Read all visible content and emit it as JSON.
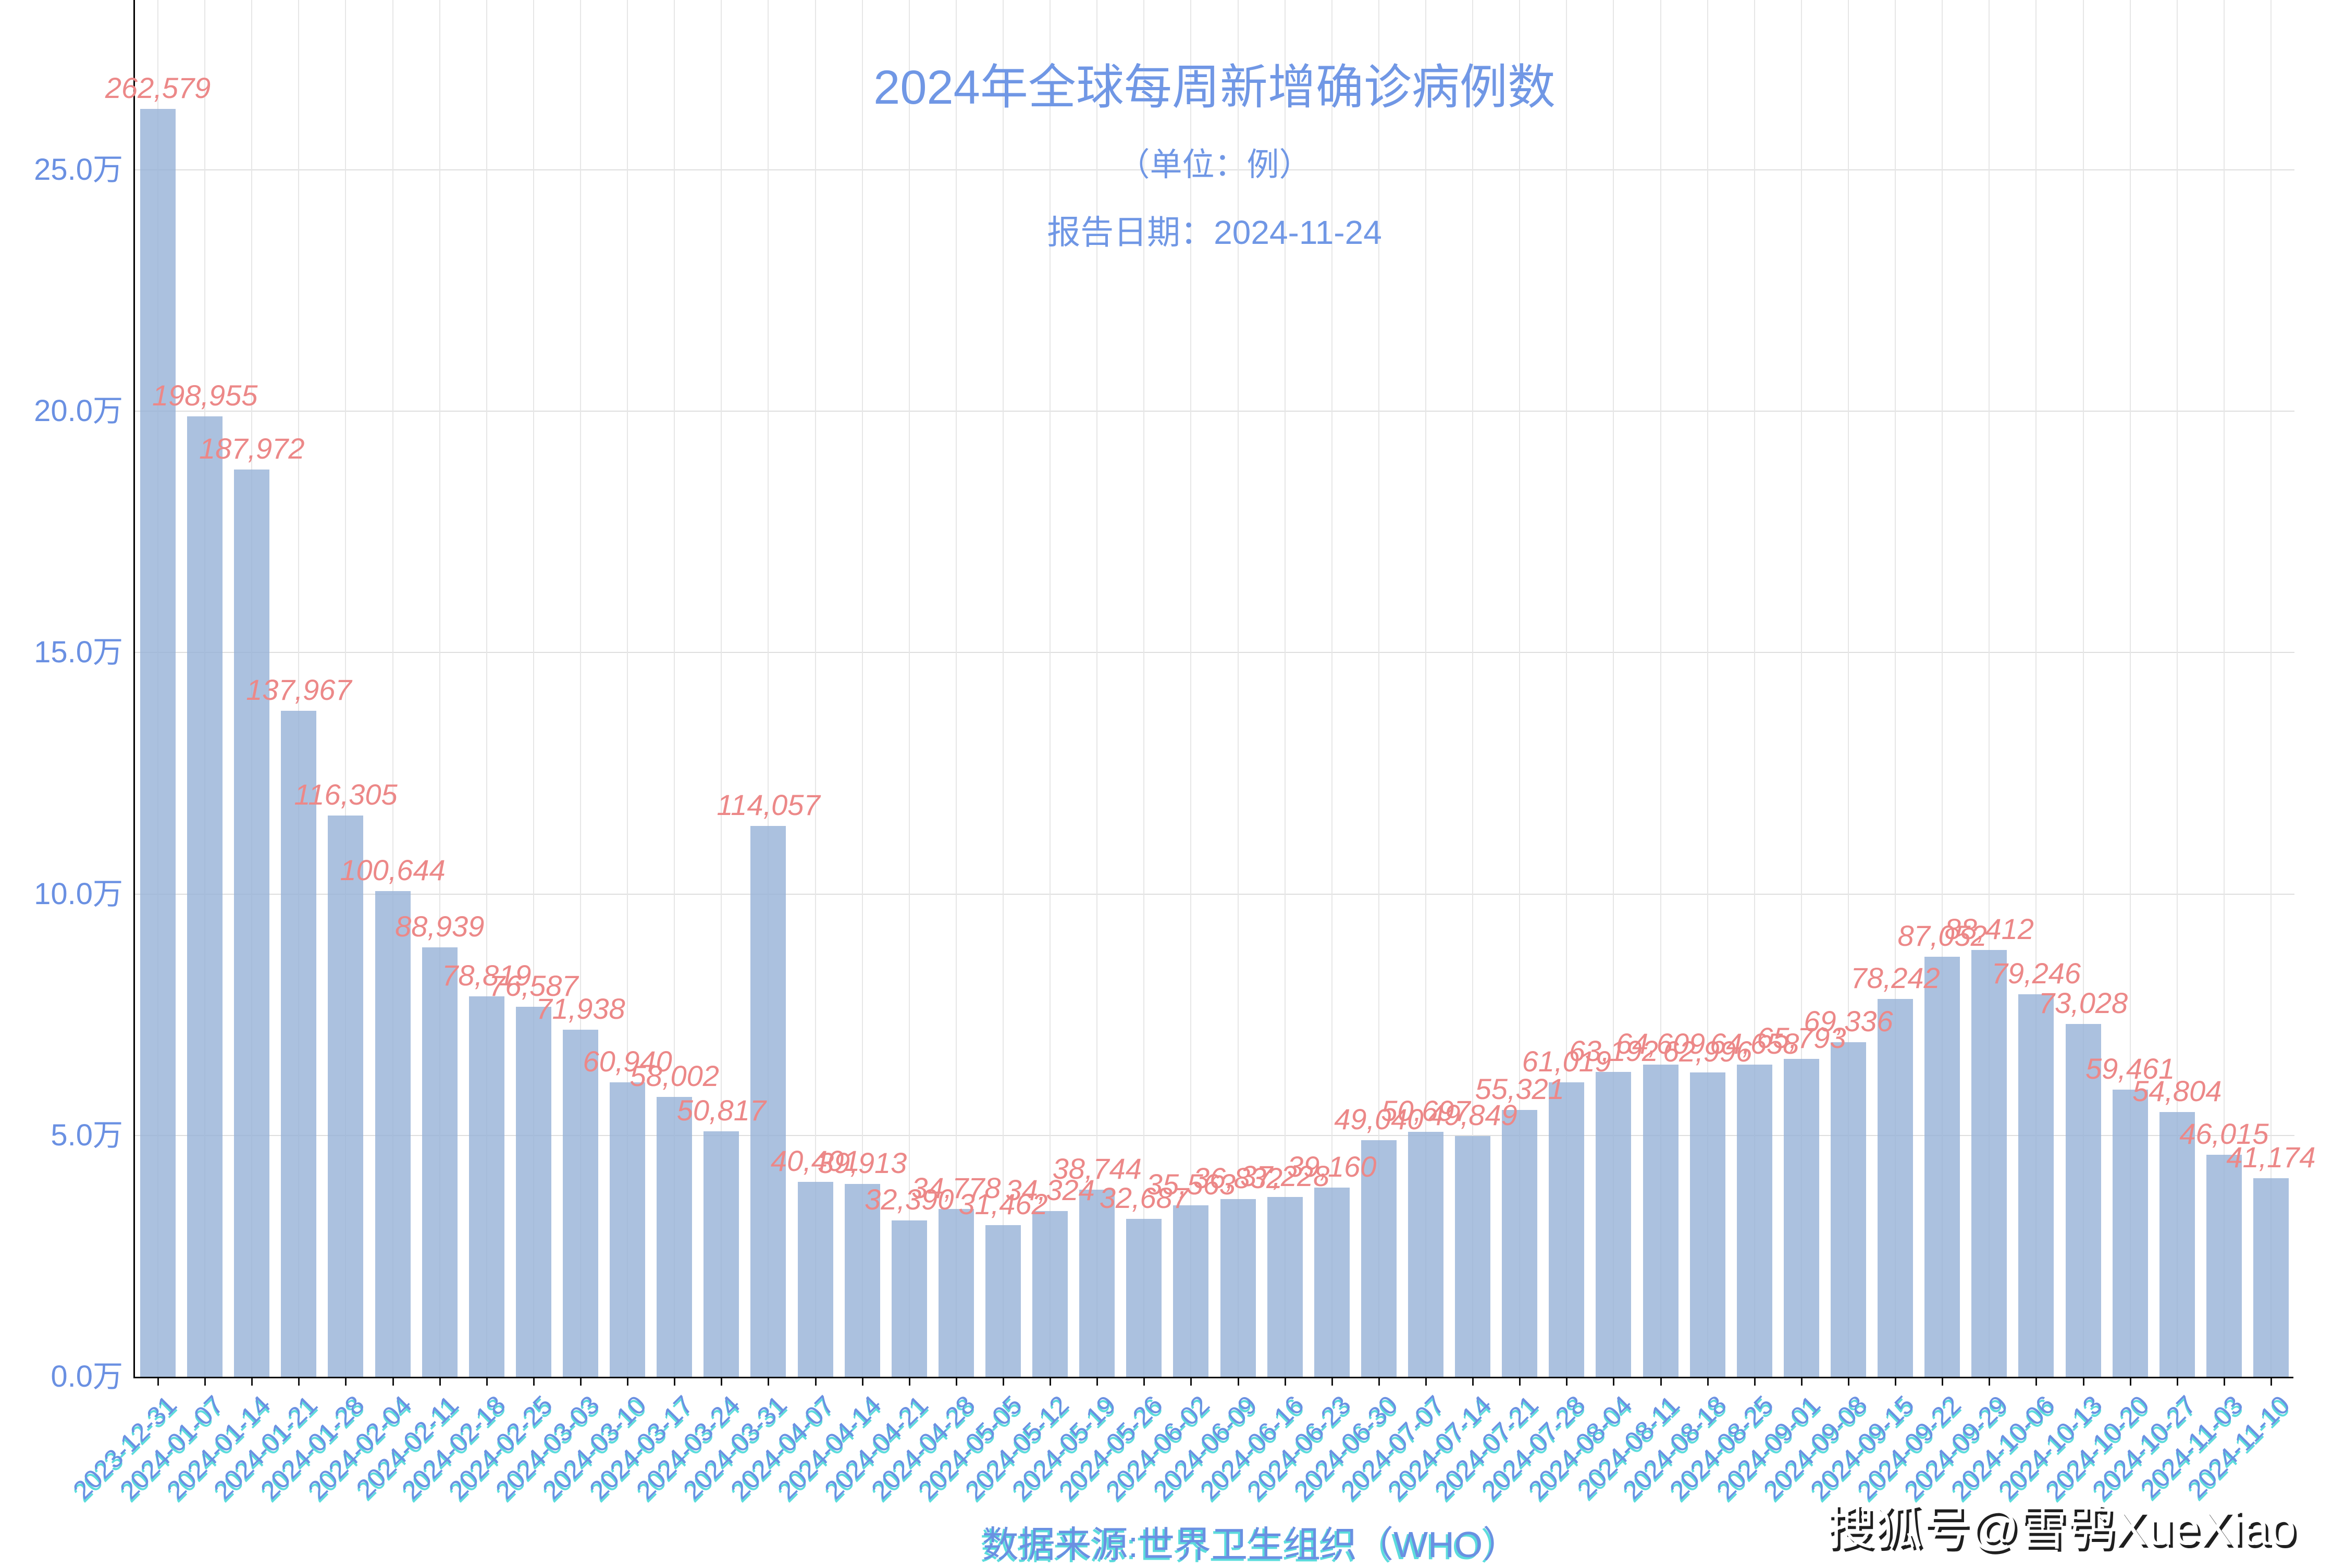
{
  "chart_data": {
    "type": "bar",
    "title": "2024年全球每周新增确诊病例数",
    "subtitle": "（单位：例）",
    "report_date": "报告日期：2024-11-24",
    "source": "数据来源:世界卫生组织（WHO）",
    "watermark": "搜狐号@雪鸮XueXiao",
    "unit": "例",
    "grid": true,
    "legend": false,
    "ylim": [
      0,
      285000
    ],
    "y_ticks": [
      {
        "value": 0,
        "label": "0.0万"
      },
      {
        "value": 50000,
        "label": "5.0万"
      },
      {
        "value": 100000,
        "label": "10.0万"
      },
      {
        "value": 150000,
        "label": "15.0万"
      },
      {
        "value": 200000,
        "label": "20.0万"
      },
      {
        "value": 250000,
        "label": "25.0万"
      }
    ],
    "categories": [
      "2023-12-31",
      "2024-01-07",
      "2024-01-14",
      "2024-01-21",
      "2024-01-28",
      "2024-02-04",
      "2024-02-11",
      "2024-02-18",
      "2024-02-25",
      "2024-03-03",
      "2024-03-10",
      "2024-03-17",
      "2024-03-24",
      "2024-03-31",
      "2024-04-07",
      "2024-04-14",
      "2024-04-21",
      "2024-04-28",
      "2024-05-05",
      "2024-05-12",
      "2024-05-19",
      "2024-05-26",
      "2024-06-02",
      "2024-06-09",
      "2024-06-16",
      "2024-06-23",
      "2024-06-30",
      "2024-07-07",
      "2024-07-14",
      "2024-07-21",
      "2024-07-28",
      "2024-08-04",
      "2024-08-11",
      "2024-08-18",
      "2024-08-25",
      "2024-09-01",
      "2024-09-08",
      "2024-09-15",
      "2024-09-22",
      "2024-09-29",
      "2024-10-06",
      "2024-10-13",
      "2024-10-20",
      "2024-10-27",
      "2024-11-03",
      "2024-11-10"
    ],
    "values": [
      262579,
      198955,
      187972,
      137967,
      116305,
      100644,
      88939,
      78819,
      76587,
      71938,
      60940,
      58002,
      50817,
      114057,
      40401,
      39913,
      32390,
      34778,
      31462,
      34324,
      38744,
      32687,
      35563,
      36832,
      37228,
      39160,
      49040,
      50697,
      49849,
      55321,
      61019,
      63192,
      64609,
      62996,
      64658,
      65793,
      69336,
      78242,
      87052,
      88412,
      79246,
      73028,
      59461,
      54804,
      46015,
      41174
    ],
    "value_labels": [
      "262,579",
      "198,955",
      "187,972",
      "137,967",
      "116,305",
      "100,644",
      "88,939",
      "78,819",
      "76,587",
      "71,938",
      "60,940",
      "58,002",
      "50,817",
      "114,057",
      "40,401",
      "39,913",
      "32,390",
      "34,778",
      "31,462",
      "34,324",
      "38,744",
      "32,687",
      "35,563",
      "36,832",
      "37,228",
      "39,160",
      "49,040",
      "50,697",
      "49,849",
      "55,321",
      "61,019",
      "63,192",
      "64,609",
      "62,996",
      "64,658",
      "65,793",
      "69,336",
      "78,242",
      "87,052",
      "88,412",
      "79,246",
      "73,028",
      "59,461",
      "54,804",
      "46,015",
      "41,174"
    ],
    "colors": {
      "bar": "#a9c1de",
      "bar_label": "#ec8888",
      "axis_text": "#6a90e2",
      "title_text": "#7097e5",
      "date_text": "#6a90e2",
      "date_shadow": "#3fd6d6",
      "axis_line": "#000000",
      "grid_vertical": "#e6e6e6",
      "grid_horizontal": "#dedede",
      "watermark_shadow": "#1f1f1f",
      "background": "#ffffff"
    }
  }
}
